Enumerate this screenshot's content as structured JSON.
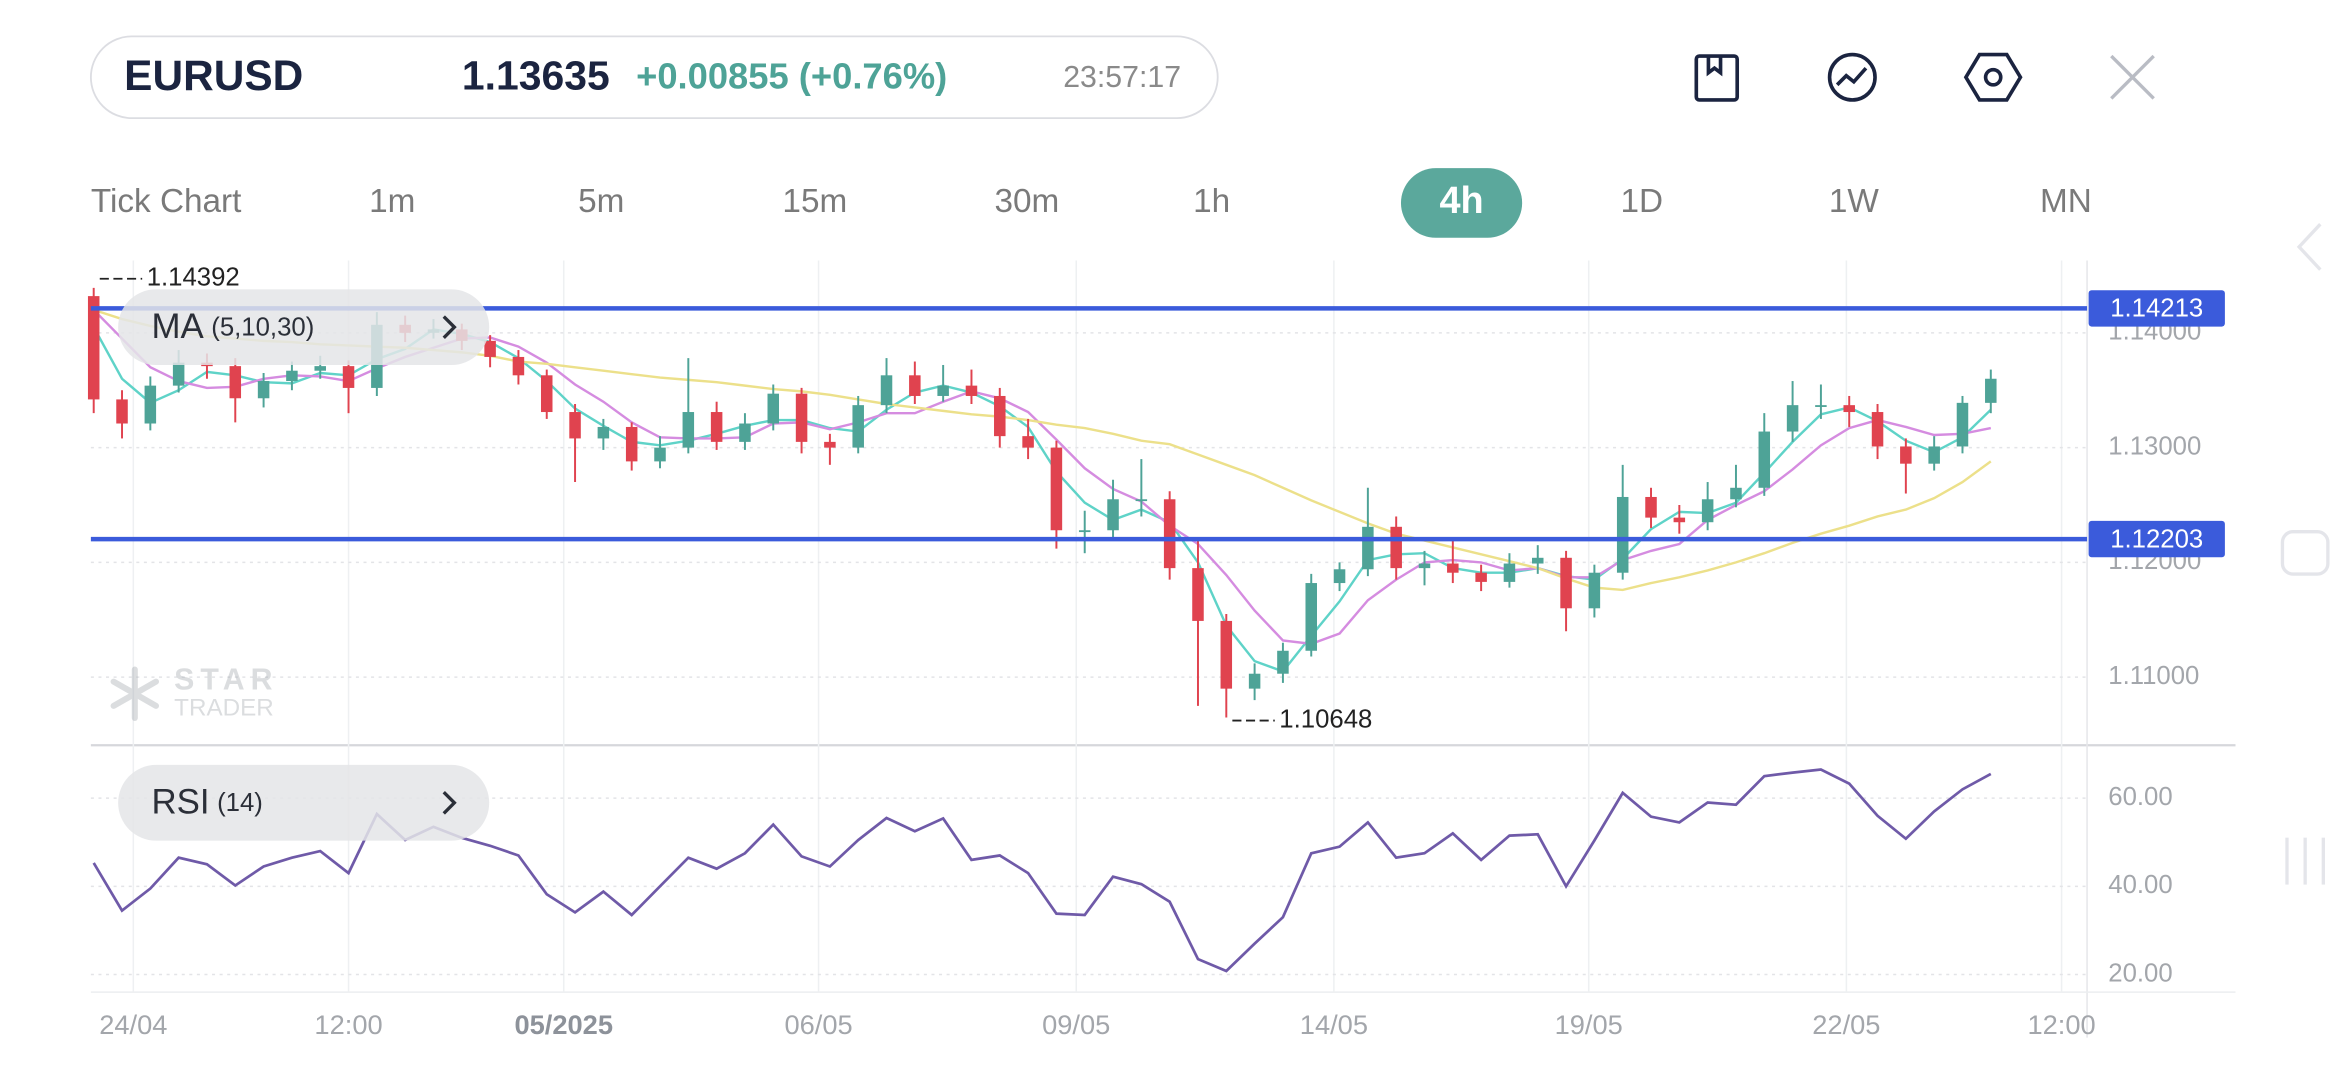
{
  "header": {
    "symbol": "EURUSD",
    "price": "1.13635",
    "change": "+0.00855 (+0.76%)",
    "time": "23:57:17"
  },
  "timeframes": {
    "items": [
      "Tick Chart",
      "1m",
      "5m",
      "15m",
      "30m",
      "1h",
      "4h",
      "1D",
      "1W",
      "MN"
    ],
    "active": 6
  },
  "watermark": {
    "line1": "STAR",
    "line2": "TRADER"
  },
  "chart_data": [
    {
      "type": "candlestick",
      "indicator": {
        "name": "MA",
        "params": "(5,10,30)"
      },
      "categories": [
        null,
        null,
        null,
        null,
        null,
        null,
        null,
        null,
        null,
        null,
        null,
        null,
        null,
        null,
        null,
        null,
        null,
        null,
        null,
        null,
        null,
        null,
        null,
        null,
        null,
        null,
        null,
        null,
        null,
        null,
        null,
        null,
        null,
        null,
        null,
        null,
        null,
        null,
        null,
        null,
        null,
        null,
        null,
        null,
        null,
        null,
        null,
        null,
        null,
        null,
        null,
        null,
        null,
        null,
        null,
        null,
        null,
        null,
        null,
        null,
        null,
        null,
        null,
        null,
        null,
        null,
        null,
        null
      ],
      "open": [
        1.1432,
        1.1342,
        1.1321,
        1.1354,
        1.1374,
        1.1371,
        1.1343,
        1.1358,
        1.1367,
        1.1371,
        1.1352,
        1.1407,
        1.14,
        1.1403,
        1.1393,
        1.1379,
        1.1363,
        1.1331,
        1.1308,
        1.1318,
        1.1288,
        1.13,
        1.1331,
        1.1305,
        1.1321,
        1.1347,
        1.1305,
        1.13,
        1.1337,
        1.1363,
        1.1345,
        1.1354,
        1.1345,
        1.131,
        1.13,
        1.1228,
        1.1228,
        1.1255,
        1.1255,
        1.1195,
        1.1149,
        1.109,
        1.1103,
        1.1123,
        1.1182,
        1.1194,
        1.1231,
        1.1195,
        1.1199,
        1.1191,
        1.1183,
        1.1199,
        1.1204,
        1.116,
        1.1191,
        1.1257,
        1.1239,
        1.1235,
        1.1255,
        1.1265,
        1.1314,
        1.1337,
        1.1337,
        1.1331,
        1.1301,
        1.1286,
        1.1301,
        1.1339
      ],
      "high": [
        1.14392,
        1.135,
        1.1362,
        1.1385,
        1.1382,
        1.1378,
        1.1365,
        1.1375,
        1.138,
        1.1376,
        1.1418,
        1.1415,
        1.1412,
        1.1408,
        1.1398,
        1.1385,
        1.1368,
        1.1338,
        1.1325,
        1.1322,
        1.131,
        1.1378,
        1.134,
        1.133,
        1.1355,
        1.1352,
        1.1312,
        1.1345,
        1.1378,
        1.1375,
        1.1372,
        1.1368,
        1.1352,
        1.1325,
        1.1306,
        1.1245,
        1.1272,
        1.129,
        1.1262,
        1.122,
        1.1155,
        1.1112,
        1.113,
        1.119,
        1.12,
        1.1265,
        1.124,
        1.121,
        1.122,
        1.1198,
        1.1208,
        1.1215,
        1.121,
        1.1198,
        1.1285,
        1.1265,
        1.125,
        1.127,
        1.1285,
        1.133,
        1.1358,
        1.1355,
        1.1345,
        1.1338,
        1.1308,
        1.131,
        1.1345,
        1.1368
      ],
      "low": [
        1.133,
        1.1308,
        1.1315,
        1.1348,
        1.136,
        1.1322,
        1.1335,
        1.135,
        1.136,
        1.133,
        1.1345,
        1.1392,
        1.1395,
        1.1385,
        1.137,
        1.1355,
        1.1325,
        1.127,
        1.1298,
        1.128,
        1.1282,
        1.1295,
        1.1298,
        1.1298,
        1.1315,
        1.1295,
        1.1285,
        1.1295,
        1.133,
        1.1338,
        1.134,
        1.1338,
        1.13,
        1.129,
        1.1212,
        1.1208,
        1.122,
        1.124,
        1.1185,
        1.1075,
        1.10648,
        1.108,
        1.1095,
        1.1118,
        1.1175,
        1.1188,
        1.1185,
        1.118,
        1.1182,
        1.1175,
        1.1178,
        1.119,
        1.114,
        1.1152,
        1.1185,
        1.123,
        1.1225,
        1.1228,
        1.1248,
        1.1258,
        1.1305,
        1.1325,
        1.1318,
        1.129,
        1.126,
        1.128,
        1.1295,
        1.133
      ],
      "close": [
        1.1342,
        1.1321,
        1.1354,
        1.1374,
        1.1371,
        1.1343,
        1.1358,
        1.1367,
        1.1371,
        1.1352,
        1.1407,
        1.14,
        1.1403,
        1.1393,
        1.1379,
        1.1363,
        1.1331,
        1.1308,
        1.1318,
        1.1288,
        1.13,
        1.1331,
        1.1305,
        1.1321,
        1.1347,
        1.1305,
        1.13,
        1.1337,
        1.1363,
        1.1345,
        1.1354,
        1.1345,
        1.131,
        1.13,
        1.1228,
        1.1228,
        1.1255,
        1.1255,
        1.1195,
        1.1149,
        1.109,
        1.1103,
        1.1123,
        1.1182,
        1.1194,
        1.1231,
        1.1195,
        1.1199,
        1.1191,
        1.1183,
        1.1199,
        1.1204,
        1.116,
        1.1191,
        1.1257,
        1.1239,
        1.1235,
        1.1255,
        1.1265,
        1.1314,
        1.1337,
        1.1337,
        1.1331,
        1.1301,
        1.1286,
        1.1301,
        1.1339,
        1.136
      ],
      "up_color": "#4ea397",
      "down_color": "#e0434f",
      "series": [
        {
          "color": "#5fd3c8",
          "values": [
            1.1405,
            1.136,
            1.1339,
            1.135,
            1.1366,
            1.1363,
            1.1357,
            1.1356,
            1.1365,
            1.1363,
            1.1377,
            1.1386,
            1.1403,
            1.1399,
            1.1392,
            1.1378,
            1.1358,
            1.1334,
            1.1319,
            1.1305,
            1.1302,
            1.1306,
            1.1312,
            1.1319,
            1.1324,
            1.1324,
            1.1317,
            1.1314,
            1.1333,
            1.1348,
            1.1354,
            1.1348,
            1.1336,
            1.1318,
            1.1279,
            1.1252,
            1.1237,
            1.1246,
            1.1235,
            1.12,
            1.1145,
            1.1114,
            1.1105,
            1.1136,
            1.1166,
            1.1202,
            1.1207,
            1.1208,
            1.1195,
            1.1191,
            1.1191,
            1.1195,
            1.1188,
            1.1185,
            1.1203,
            1.1229,
            1.1244,
            1.1243,
            1.1252,
            1.1278,
            1.1305,
            1.1329,
            1.1335,
            1.1323,
            1.1306,
            1.1296,
            1.1309,
            1.1333
          ]
        },
        {
          "color": "#d58ce0",
          "values": [
            1.142,
            1.1395,
            1.137,
            1.1358,
            1.1352,
            1.1353,
            1.136,
            1.1363,
            1.1362,
            1.1358,
            1.1369,
            1.1379,
            1.1387,
            1.1395,
            1.1396,
            1.1388,
            1.1374,
            1.1355,
            1.134,
            1.1322,
            1.1309,
            1.1308,
            1.1308,
            1.1309,
            1.1321,
            1.1322,
            1.1316,
            1.1322,
            1.133,
            1.133,
            1.134,
            1.1349,
            1.1343,
            1.1331,
            1.1307,
            1.1282,
            1.1264,
            1.1253,
            1.1232,
            1.1216,
            1.1189,
            1.1158,
            1.1132,
            1.1129,
            1.1138,
            1.1167,
            1.1185,
            1.12,
            1.1202,
            1.12,
            1.1193,
            1.1195,
            1.1187,
            1.1187,
            1.1202,
            1.121,
            1.1216,
            1.1237,
            1.125,
            1.1262,
            1.1281,
            1.1302,
            1.1317,
            1.1324,
            1.1318,
            1.1311,
            1.1312,
            1.1317
          ]
        },
        {
          "color": "#ece08a",
          "values": [
            1.142,
            1.1412,
            1.1406,
            1.1401,
            1.1397,
            1.1395,
            1.1393,
            1.1392,
            1.139,
            1.1389,
            1.1388,
            1.1387,
            1.1385,
            1.1383,
            1.138,
            1.1375,
            1.1373,
            1.137,
            1.1367,
            1.1364,
            1.1361,
            1.1359,
            1.1357,
            1.1354,
            1.1351,
            1.1349,
            1.1346,
            1.1342,
            1.1338,
            1.1335,
            1.1332,
            1.1329,
            1.1327,
            1.1324,
            1.132,
            1.1317,
            1.1312,
            1.1306,
            1.1303,
            1.1294,
            1.1285,
            1.1276,
            1.1265,
            1.1254,
            1.1244,
            1.1234,
            1.1225,
            1.1219,
            1.1213,
            1.1207,
            1.1201,
            1.1195,
            1.1186,
            1.1178,
            1.1176,
            1.1182,
            1.1187,
            1.1193,
            1.12,
            1.1208,
            1.1217,
            1.1225,
            1.1232,
            1.124,
            1.1246,
            1.1256,
            1.127,
            1.1288
          ]
        }
      ],
      "hlines": [
        1.14213,
        1.12203
      ],
      "hline_color": "#3b5bdb",
      "ylim": [
        1.1042,
        1.1463
      ],
      "yticks": [
        {
          "value": 1.14,
          "label": "1.14000"
        },
        {
          "value": 1.13,
          "label": "1.13000"
        },
        {
          "value": 1.12,
          "label": "1.12000"
        },
        {
          "value": 1.11,
          "label": "1.11000"
        }
      ],
      "xlim": [
        -0.1,
        70.4
      ],
      "xticks": [
        {
          "value": 1.4,
          "label": "24/04"
        },
        {
          "value": 9,
          "label": "12:00"
        },
        {
          "value": 16.6,
          "label": "05/2025",
          "bold": true
        },
        {
          "value": 25.6,
          "label": "06/05"
        },
        {
          "value": 34.7,
          "label": "09/05"
        },
        {
          "value": 43.8,
          "label": "14/05"
        },
        {
          "value": 52.8,
          "label": "19/05"
        },
        {
          "value": 61.9,
          "label": "22/05"
        },
        {
          "value": 69.5,
          "label": "12:00"
        }
      ],
      "grid": true
    },
    {
      "type": "line",
      "indicator": {
        "name": "RSI",
        "params": "(14)"
      },
      "series": [
        {
          "color": "#6f5aa8",
          "values": [
            45.3,
            34.5,
            39.5,
            46.5,
            45.0,
            40.2,
            44.5,
            46.5,
            48.0,
            43.0,
            56.4,
            50.5,
            53.5,
            51.0,
            49.2,
            47.0,
            38.2,
            34.1,
            38.8,
            33.5,
            40.0,
            46.5,
            44.0,
            47.5,
            54.0,
            46.8,
            44.5,
            50.5,
            55.5,
            52.5,
            55.4,
            46.0,
            47.0,
            43.0,
            33.8,
            33.5,
            42.2,
            40.5,
            36.5,
            23.5,
            20.8,
            27.0,
            33.0,
            47.5,
            49.0,
            54.5,
            46.5,
            47.5,
            52.0,
            46.0,
            51.5,
            51.8,
            40.0,
            50.4,
            61.2,
            55.8,
            54.5,
            59.0,
            58.5,
            65.0,
            65.8,
            66.5,
            63.3,
            56.0,
            50.8,
            57.0,
            62.0,
            65.5
          ]
        }
      ],
      "ylim": [
        16,
        72
      ],
      "yticks": [
        {
          "value": 60,
          "label": "60.00"
        },
        {
          "value": 40,
          "label": "40.00"
        },
        {
          "value": 20,
          "label": "20.00"
        }
      ],
      "grid": true
    }
  ]
}
